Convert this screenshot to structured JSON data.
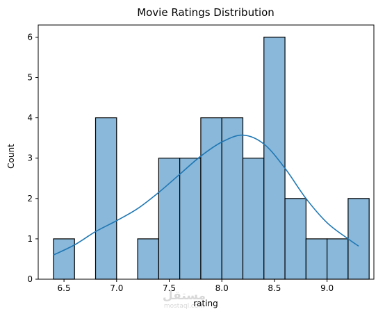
{
  "chart_data": {
    "type": "bar",
    "subtype": "histogram-with-kde",
    "title": "Movie Ratings Distribution",
    "xlabel": "rating",
    "ylabel": "Count",
    "xlim": [
      6.255,
      9.445
    ],
    "ylim": [
      0,
      6.3
    ],
    "xticks": [
      "6.5",
      "7.0",
      "7.5",
      "8.0",
      "8.5",
      "9.0"
    ],
    "xtick_values": [
      6.5,
      7.0,
      7.5,
      8.0,
      8.5,
      9.0
    ],
    "yticks": [
      "0",
      "1",
      "2",
      "3",
      "4",
      "5",
      "6"
    ],
    "ytick_values": [
      0,
      1,
      2,
      3,
      4,
      5,
      6
    ],
    "bin_edges": [
      6.4,
      6.6,
      6.8,
      7.0,
      7.2,
      7.4,
      7.6,
      7.8,
      8.0,
      8.2,
      8.4,
      8.6,
      8.8,
      9.0,
      9.2,
      9.4
    ],
    "counts": [
      1,
      0,
      4,
      0,
      1,
      3,
      3,
      4,
      4,
      3,
      6,
      2,
      1,
      1,
      2
    ],
    "kde": {
      "x": [
        6.4,
        6.6,
        6.8,
        7.0,
        7.2,
        7.4,
        7.6,
        7.8,
        8.0,
        8.2,
        8.4,
        8.6,
        8.8,
        9.0,
        9.2,
        9.3
      ],
      "y": [
        0.6,
        0.85,
        1.18,
        1.45,
        1.75,
        2.15,
        2.6,
        3.05,
        3.4,
        3.57,
        3.35,
        2.75,
        2.0,
        1.4,
        1.0,
        0.82
      ]
    },
    "grid": false,
    "legend": "none",
    "bar_color": "#89b8da",
    "bar_edge_color": "#000000",
    "line_color": "#1f77b4"
  },
  "watermark": {
    "arabic": "مستقل",
    "latin": "mostaql.com"
  }
}
